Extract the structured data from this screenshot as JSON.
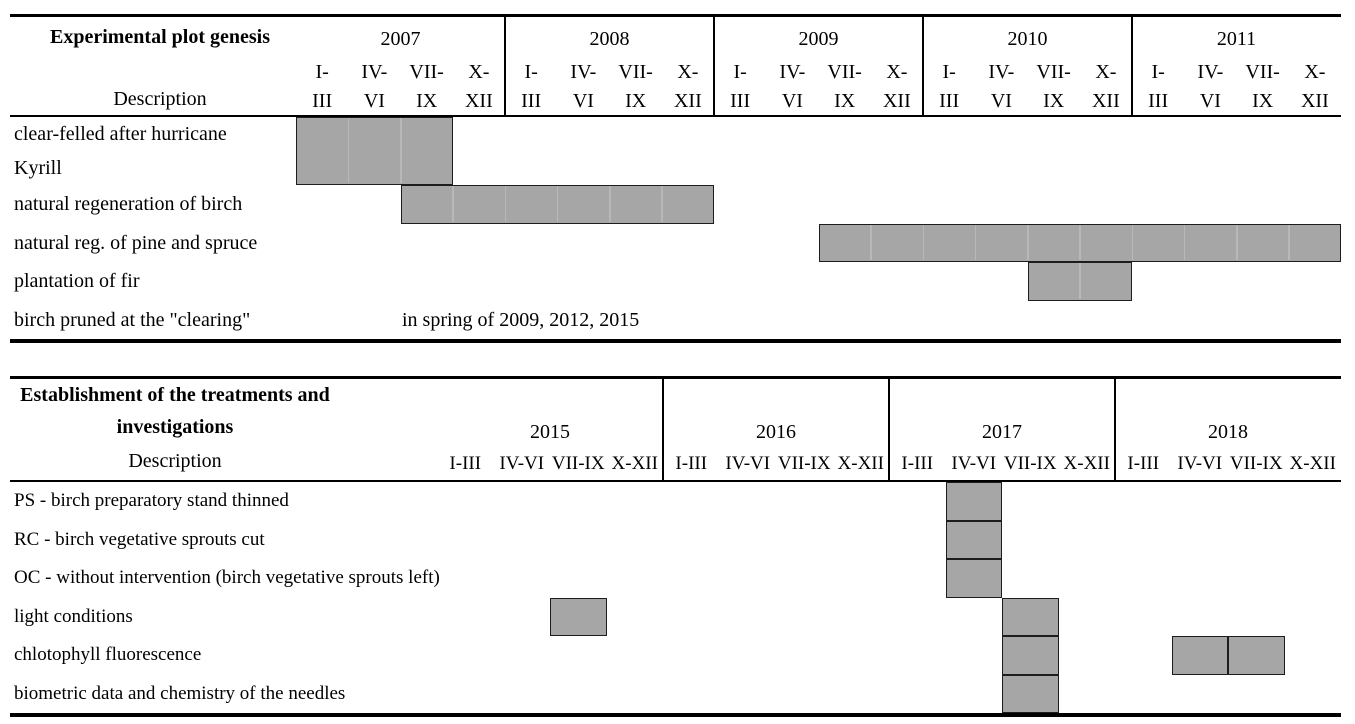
{
  "colors": {
    "background": "#ffffff",
    "rule": "#000000",
    "bar_fill": "#a6a6a6",
    "bar_border": "#1d1d1d",
    "bar_cell_divider": "#b8b8b8"
  },
  "chart_data": [
    {
      "type": "table",
      "subtype": "gantt_timeline",
      "unit": "year_quarters",
      "title": "Experimental plot genesis",
      "description_header": "Description",
      "years": [
        "2007",
        "2008",
        "2009",
        "2010",
        "2011"
      ],
      "quarter_labels_top": [
        "I-",
        "IV-",
        "VII-",
        "X-"
      ],
      "quarter_labels_bottom": [
        "III",
        "VI",
        "IX",
        "XII"
      ],
      "legend_position": "none",
      "rows": [
        {
          "label_lines": [
            "clear-felled after hurricane",
            "Kyrill"
          ],
          "spans": [
            {
              "from": "2007 Q1",
              "to": "2007 Q3"
            }
          ]
        },
        {
          "label_lines": [
            "natural regeneration of birch"
          ],
          "spans": [
            {
              "from": "2007 Q3",
              "to": "2008 Q4"
            }
          ]
        },
        {
          "label_lines": [
            "natural reg. of pine and spruce"
          ],
          "spans": [
            {
              "from": "2009 Q3",
              "to": "2011 Q4"
            }
          ]
        },
        {
          "label_lines": [
            "plantation of fir"
          ],
          "spans": [
            {
              "from": "2010 Q3",
              "to": "2010 Q4"
            }
          ]
        },
        {
          "label_lines": [
            "birch pruned at the \"clearing\""
          ],
          "note": "in spring of 2009, 2012, 2015",
          "spans": []
        }
      ]
    },
    {
      "type": "table",
      "subtype": "gantt_timeline",
      "unit": "year_quarters",
      "title_lines": [
        "Establishment of the treatments and",
        "investigations"
      ],
      "description_header": "Description",
      "years": [
        "2015",
        "2016",
        "2017",
        "2018"
      ],
      "quarter_labels": [
        "I-III",
        "IV-VI",
        "VII-IX",
        "X-XII"
      ],
      "legend_position": "none",
      "rows": [
        {
          "label_lines": [
            "PS - birch preparatory stand thinned"
          ],
          "spans": [
            {
              "from": "2017 Q2",
              "to": "2017 Q2"
            }
          ]
        },
        {
          "label_lines": [
            "RC - birch vegetative sprouts cut"
          ],
          "spans": [
            {
              "from": "2017 Q2",
              "to": "2017 Q2"
            }
          ]
        },
        {
          "label_lines": [
            "OC - without intervention (birch vegetative sprouts left)"
          ],
          "spans": [
            {
              "from": "2017 Q2",
              "to": "2017 Q2"
            }
          ]
        },
        {
          "label_lines": [
            "light conditions"
          ],
          "spans": [
            {
              "from": "2015 Q3",
              "to": "2015 Q3"
            },
            {
              "from": "2017 Q3",
              "to": "2017 Q3"
            }
          ]
        },
        {
          "label_lines": [
            "chlotophyll fluorescence"
          ],
          "spans": [
            {
              "from": "2017 Q3",
              "to": "2017 Q3"
            },
            {
              "from": "2018 Q2",
              "to": "2018 Q2"
            },
            {
              "from": "2018 Q3",
              "to": "2018 Q3"
            }
          ]
        },
        {
          "label_lines": [
            "biometric data and chemistry of the needles"
          ],
          "spans": [
            {
              "from": "2017 Q3",
              "to": "2017 Q3"
            }
          ]
        }
      ]
    }
  ]
}
